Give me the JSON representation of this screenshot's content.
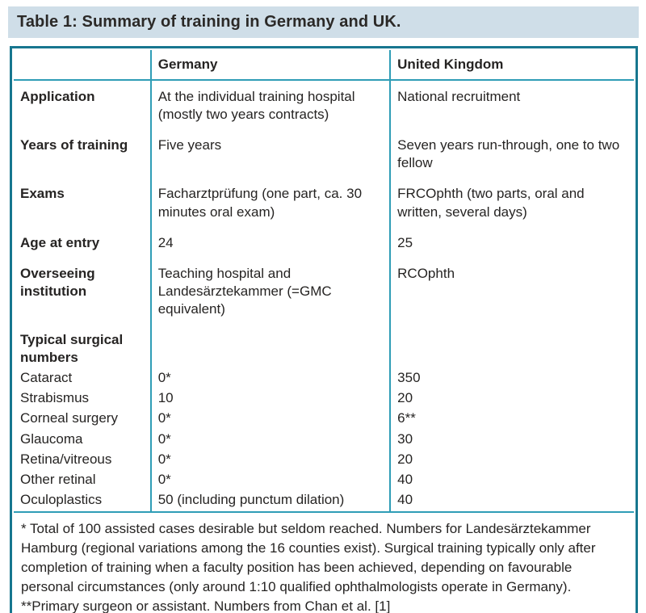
{
  "title": "Table 1: Summary of training in Germany and UK.",
  "colors": {
    "title_bar_bg": "#cfdee8",
    "outer_border": "#17768f",
    "grid_line": "#2f9db6",
    "text": "#262423"
  },
  "table": {
    "headers": {
      "col1": "",
      "col2": "Germany",
      "col3": "United Kingdom"
    },
    "rows": [
      {
        "label": "Application",
        "germany": "At the individual training hospital (mostly two years contracts)",
        "uk": "National recruitment"
      },
      {
        "label": "Years of training",
        "germany": "Five years",
        "uk": "Seven years run-through, one to two fellow"
      },
      {
        "label": "Exams",
        "germany": "Facharztprüfung (one part, ca. 30 minutes oral exam)",
        "uk": "FRCOphth (two parts, oral and written, several days)"
      },
      {
        "label": "Age at entry",
        "germany": "24",
        "uk": "25"
      },
      {
        "label": "Overseeing institution",
        "germany": "Teaching hospital and Landesärztekammer (=GMC equivalent)",
        "uk": "RCOphth"
      },
      {
        "label": "Typical surgical numbers",
        "germany": "",
        "uk": ""
      },
      {
        "label": "Cataract",
        "germany": "0*",
        "uk": "350"
      },
      {
        "label": "Strabismus",
        "germany": "10",
        "uk": "20"
      },
      {
        "label": "Corneal surgery",
        "germany": "0*",
        "uk": "6**"
      },
      {
        "label": "Glaucoma",
        "germany": "0*",
        "uk": "30"
      },
      {
        "label": "Retina/vitreous",
        "germany": "0*",
        "uk": "20"
      },
      {
        "label": "Other retinal",
        "germany": "0*",
        "uk": "40"
      },
      {
        "label": "Oculoplastics",
        "germany": "50 (including punctum dilation)",
        "uk": "40"
      }
    ],
    "footnotes": [
      "* Total of 100 assisted cases desirable but seldom reached. Numbers for Landesärztekammer Hamburg (regional variations among the 16 counties exist). Surgical training typically only after completion of training when a faculty position has been achieved, depending on favourable personal circumstances (only around 1:10 qualified ophthalmologists operate in Germany).",
      "**Primary surgeon or assistant. Numbers from Chan et al. [1]"
    ]
  }
}
